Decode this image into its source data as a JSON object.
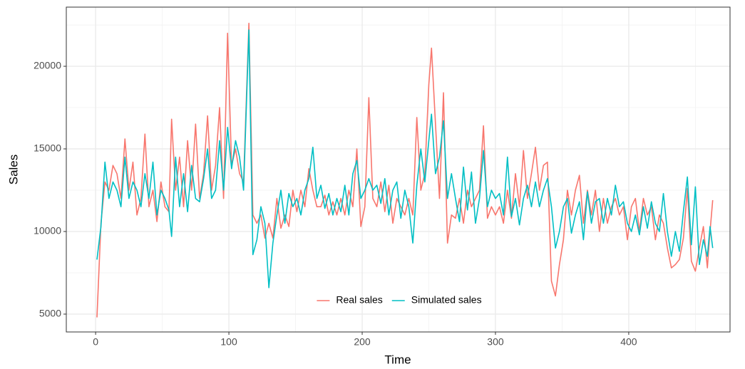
{
  "chart_data": {
    "type": "line",
    "x_label": "Time",
    "y_label": "Sales",
    "x": [
      1,
      4,
      7,
      10,
      13,
      16,
      19,
      22,
      25,
      28,
      31,
      34,
      37,
      40,
      43,
      46,
      49,
      52,
      55,
      57,
      60,
      63,
      66,
      69,
      72,
      75,
      78,
      81,
      84,
      87,
      90,
      93,
      96,
      99,
      102,
      105,
      108,
      111,
      115,
      118,
      121,
      124,
      127,
      130,
      133,
      136,
      139,
      142,
      145,
      148,
      151,
      154,
      157,
      160,
      163,
      166,
      169,
      172,
      175,
      178,
      181,
      184,
      187,
      190,
      193,
      196,
      199,
      202,
      205,
      208,
      211,
      214,
      217,
      220,
      223,
      226,
      229,
      232,
      235,
      238,
      241,
      244,
      247,
      250,
      252,
      255,
      258,
      261,
      264,
      267,
      270,
      273,
      276,
      279,
      282,
      285,
      288,
      291,
      294,
      297,
      300,
      303,
      306,
      309,
      312,
      315,
      318,
      321,
      324,
      327,
      330,
      333,
      336,
      339,
      342,
      345,
      348,
      351,
      354,
      357,
      360,
      363,
      366,
      369,
      372,
      375,
      378,
      381,
      384,
      387,
      390,
      393,
      396,
      399,
      402,
      405,
      408,
      411,
      414,
      417,
      420,
      423,
      426,
      429,
      432,
      435,
      438,
      441,
      444,
      447,
      450,
      453,
      456,
      459,
      461,
      463
    ],
    "series": [
      {
        "name": "Real sales",
        "color": "#F8766D",
        "values": [
          4800,
          10500,
          13000,
          12500,
          14000,
          13500,
          12000,
          15600,
          12500,
          14200,
          11000,
          12000,
          15900,
          11500,
          12500,
          10600,
          13000,
          11500,
          11200,
          16800,
          12500,
          14500,
          11500,
          15500,
          12500,
          16500,
          12000,
          13500,
          17000,
          12500,
          14000,
          17500,
          12000,
          22000,
          14000,
          15000,
          13500,
          13000,
          22600,
          11000,
          10500,
          11000,
          9600,
          10500,
          9600,
          12000,
          10200,
          11000,
          10300,
          12500,
          11200,
          12500,
          11500,
          13800,
          12500,
          11500,
          11500,
          12200,
          11000,
          11800,
          11000,
          12000,
          11000,
          12500,
          11500,
          15000,
          10300,
          11500,
          18100,
          12000,
          11500,
          13000,
          11200,
          12800,
          10500,
          12000,
          11500,
          11000,
          12000,
          11000,
          16900,
          12500,
          13500,
          18900,
          21100,
          16500,
          12000,
          18400,
          9300,
          11000,
          10800,
          12000,
          10500,
          12500,
          11500,
          12000,
          12500,
          16400,
          10800,
          11500,
          11000,
          11500,
          10500,
          12500,
          10800,
          13500,
          11500,
          14900,
          12000,
          13500,
          15100,
          12500,
          14000,
          14200,
          7000,
          6100,
          8000,
          9500,
          12500,
          11000,
          12500,
          13400,
          10500,
          12500,
          11000,
          12500,
          10000,
          12000,
          10500,
          11500,
          12000,
          11000,
          11500,
          9500,
          11500,
          12000,
          10000,
          12000,
          11000,
          11500,
          9500,
          11000,
          10500,
          9000,
          7800,
          8000,
          8300,
          9600,
          12600,
          8200,
          7600,
          9000,
          10300,
          7800,
          10000,
          11900
        ]
      },
      {
        "name": "Simulated sales",
        "color": "#00BFC4",
        "values": [
          8300,
          10300,
          14200,
          12000,
          13000,
          12500,
          11500,
          14500,
          12000,
          13000,
          12500,
          11500,
          13500,
          12000,
          14200,
          11000,
          12500,
          12000,
          11300,
          9700,
          14500,
          11500,
          13500,
          11200,
          14000,
          12000,
          11800,
          13200,
          15000,
          12000,
          12500,
          15500,
          12500,
          16300,
          13800,
          15500,
          14500,
          12500,
          22200,
          8600,
          9500,
          11500,
          10500,
          6600,
          9300,
          11000,
          12500,
          10500,
          12300,
          11500,
          12000,
          11000,
          12500,
          13200,
          15100,
          12000,
          12800,
          11400,
          12300,
          11000,
          12000,
          11200,
          12800,
          11000,
          13500,
          14300,
          12000,
          12500,
          13200,
          12500,
          12800,
          11700,
          13200,
          11000,
          12500,
          13000,
          10800,
          12500,
          11500,
          9300,
          12800,
          15000,
          13000,
          15500,
          17100,
          13500,
          14500,
          16700,
          12000,
          13500,
          12000,
          10600,
          13900,
          11300,
          13600,
          10500,
          12000,
          14900,
          11500,
          12500,
          12000,
          12300,
          11000,
          14500,
          10900,
          12000,
          10400,
          12000,
          12800,
          11500,
          13000,
          11500,
          12500,
          13200,
          11500,
          9000,
          10000,
          11500,
          12000,
          9900,
          11000,
          11800,
          9500,
          12400,
          10500,
          11800,
          12000,
          10500,
          12000,
          11000,
          12800,
          11500,
          11800,
          10500,
          10000,
          11000,
          9800,
          11500,
          10200,
          11800,
          10500,
          10000,
          12300,
          10000,
          8500,
          10000,
          8800,
          11200,
          13300,
          9200,
          12700,
          8000,
          9500,
          8500,
          10300,
          9000
        ]
      }
    ],
    "xlim": [
      -22,
      476
    ],
    "ylim": [
      3920,
      23580
    ],
    "xticks": [
      0,
      100,
      200,
      300,
      400
    ],
    "yticks": [
      5000,
      10000,
      15000,
      20000
    ],
    "grid": true,
    "minor_grid": true,
    "legend_position": "bottom-inside"
  }
}
